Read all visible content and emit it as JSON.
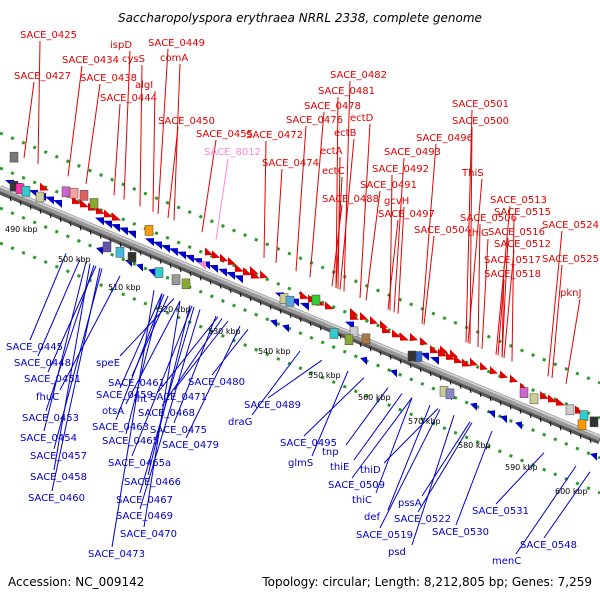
{
  "title": "Saccharopolyspora erythraea NRRL 2338, complete genome",
  "accession": "Accession: NC_009142",
  "topology": "Topology: circular; Length: 8,212,805 bp; Genes: 7,259",
  "colors": {
    "forward": "#e30000",
    "reverse": "#0000cc",
    "highlight": "#ff88cc",
    "backbone": "#8a8a8a",
    "guide": "#2a9a2a"
  },
  "kbp_labels": [
    "490 kbp",
    "500 kbp",
    "510 kbp",
    "520 kbp",
    "530 kbp",
    "540 kbp",
    "550 kbp",
    "560 kbp",
    "570 kbp",
    "580 kbp",
    "590 kbp",
    "600 kbp"
  ],
  "forward_labels": [
    "SACE_0425",
    "ispD",
    "SACE_0449",
    "SACE_0434",
    "cysS",
    "comA",
    "SACE_0427",
    "SACE_0438",
    "algI",
    "SACE_0444",
    "SACE_0450",
    "SACE_0455",
    "SACE_0472",
    "SACE_0474",
    "SACE_0476",
    "SACE_0478",
    "SACE_0481",
    "SACE_0482",
    "ectD",
    "ectB",
    "ectA",
    "ectC",
    "SACE_0488",
    "SACE_0491",
    "SACE_0492",
    "gcvH",
    "SACE_0493",
    "SACE_0496",
    "SACE_0500",
    "SACE_0501",
    "SACE_0497",
    "ThiS",
    "SACE_0506",
    "thiG",
    "SACE_0504",
    "SACE_0513",
    "SACE_0515",
    "SACE_0516",
    "SACE_0512",
    "SACE_0524",
    "SACE_0517",
    "SACE_0518",
    "SACE_0525",
    "pknJ"
  ],
  "highlight_labels": [
    "SACE_8012"
  ],
  "reverse_labels": [
    "SACE_0445",
    "SACE_0448",
    "SACE_0451",
    "speE",
    "fhuC",
    "SACE_0461",
    "SACE_0459",
    "SACE_0453",
    "otsA",
    "int",
    "SACE_0480",
    "SACE_0454",
    "SACE_0463",
    "SACE_0471",
    "SACE_0468",
    "SACE_0465",
    "SACE_0475",
    "SACE_0457",
    "SACE_0479",
    "SACE_0465a",
    "SACE_0458",
    "SACE_0466",
    "SACE_0460",
    "SACE_0467",
    "SACE_0469",
    "SACE_0470",
    "SACE_0473",
    "draG",
    "SACE_0489",
    "SACE_0495",
    "glmS",
    "tnp",
    "thiE",
    "thiD",
    "SACE_0509",
    "thiC",
    "def",
    "pssA",
    "SACE_0522",
    "SACE_0519",
    "SACE_0530",
    "psd",
    "SACE_0531",
    "SACE_0548",
    "menC"
  ]
}
